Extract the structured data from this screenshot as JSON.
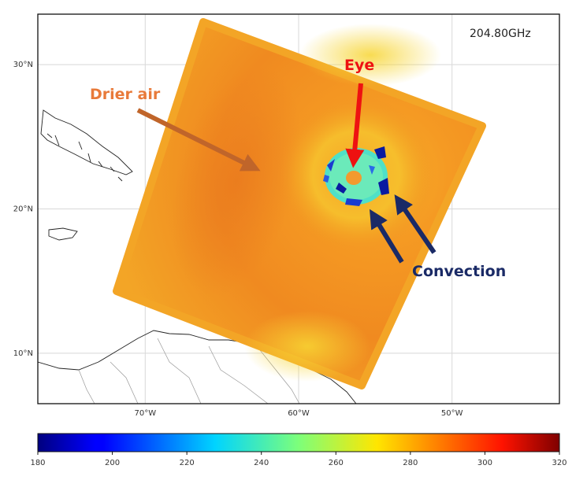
{
  "map": {
    "frequency_label": "204.80GHz",
    "lat_ticks": [
      {
        "value": 30,
        "label": "30°N"
      },
      {
        "value": 20,
        "label": "20°N"
      },
      {
        "value": 10,
        "label": "10°N"
      }
    ],
    "lon_ticks": [
      {
        "value": -70,
        "label": "70°W"
      },
      {
        "value": -60,
        "label": "60°W"
      },
      {
        "value": -50,
        "label": "50°W"
      }
    ],
    "extent": {
      "lon_min": -77,
      "lon_max": -43,
      "lat_min": 6.5,
      "lat_max": 33.5
    },
    "grid": true,
    "annotations": [
      {
        "text": "Drier air",
        "color": "#e87a3a",
        "arrow_color": "#c0652a"
      },
      {
        "text": "Eye",
        "color": "#ee1111",
        "arrow_color": "#ee1111"
      },
      {
        "text": "Convection",
        "color": "#1a2a66",
        "arrow_color": "#1a2a66"
      }
    ]
  },
  "colorbar": {
    "min": 180,
    "max": 320,
    "ticks": [
      {
        "value": 180,
        "label": "180"
      },
      {
        "value": 200,
        "label": "200"
      },
      {
        "value": 220,
        "label": "220"
      },
      {
        "value": 240,
        "label": "240"
      },
      {
        "value": 260,
        "label": "260"
      },
      {
        "value": 280,
        "label": "280"
      },
      {
        "value": 300,
        "label": "300"
      },
      {
        "value": 320,
        "label": "320"
      }
    ],
    "colormap": "jet"
  }
}
